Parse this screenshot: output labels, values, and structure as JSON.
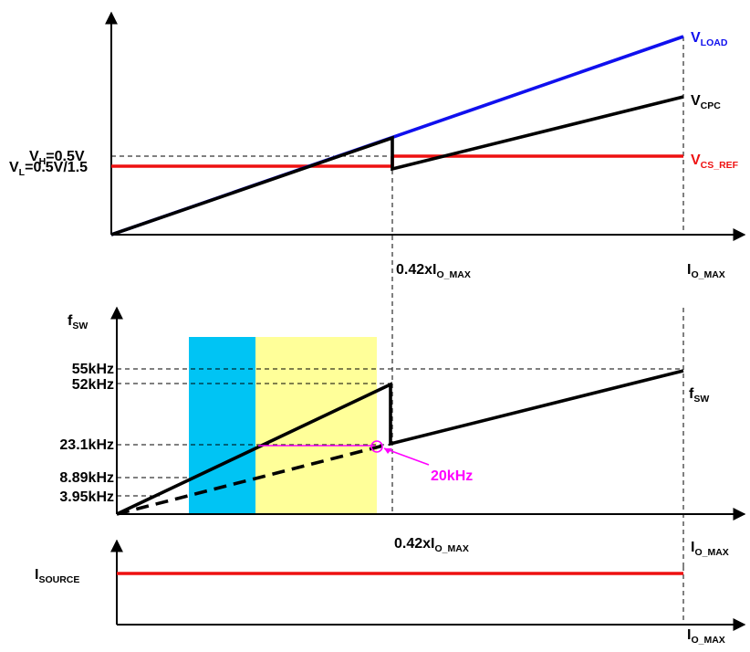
{
  "colors": {
    "vload": "#1010ee",
    "vcs_ref": "#ee1111",
    "isource": "#ee1111",
    "annotation": "#ff00ff",
    "band_blue": "#00c4f4",
    "band_yellow": "#ffff99"
  },
  "top_plot": {
    "ylabel_vh_main": "V",
    "ylabel_vh_sub": "H",
    "ylabel_vh_rest": "=0.5V",
    "ylabel_vl_main": "V",
    "ylabel_vl_sub": "L",
    "ylabel_vl_rest": "=0.5V/1.5",
    "vload_main": "V",
    "vload_sub": "LOAD",
    "vcpc_main": "V",
    "vcpc_sub": "CPC",
    "vcsref_main": "V",
    "vcsref_sub": "CS_REF",
    "x_mark_main": "0.42xI",
    "x_mark_sub": "O_MAX",
    "x_end_main": "I",
    "x_end_sub": "O_MAX"
  },
  "mid_plot": {
    "ylabel_main": "f",
    "ylabel_sub": "SW",
    "ticks": [
      "55kHz",
      "52kHz",
      "23.1kHz",
      "8.89kHz",
      "3.95kHz"
    ],
    "fsw_main": "f",
    "fsw_sub": "SW",
    "annotation": "20kHz",
    "x_mark_main": "0.42xI",
    "x_mark_sub": "O_MAX",
    "x_end_main": "I",
    "x_end_sub": "O_MAX"
  },
  "bottom_plot": {
    "ylabel_main": "I",
    "ylabel_sub": "SOURCE",
    "x_end_main": "I",
    "x_end_sub": "O_MAX"
  }
}
